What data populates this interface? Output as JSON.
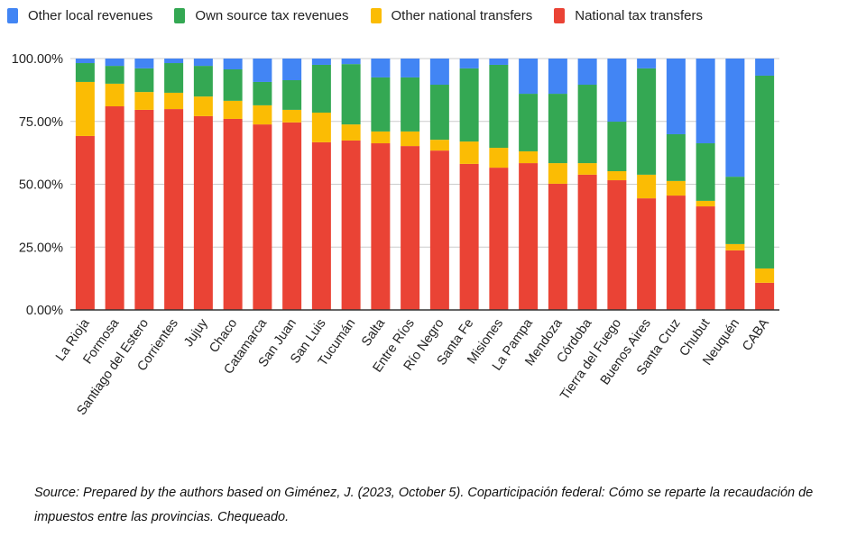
{
  "chart_data": {
    "type": "bar",
    "stacked": true,
    "normalized": true,
    "title": "",
    "xlabel": "",
    "ylabel": "",
    "ylim": [
      0,
      100
    ],
    "yticks": [
      "0.00%",
      "25.00%",
      "50.00%",
      "75.00%",
      "100.00%"
    ],
    "ytick_values": [
      0,
      25,
      50,
      75,
      100
    ],
    "grid": true,
    "legend_position": "top-left",
    "categories": [
      "La Rioja",
      "Formosa",
      "Santiago del Estero",
      "Corrientes",
      "Jujuy",
      "Chaco",
      "Catamarca",
      "San Juan",
      "San Luis",
      "Tucumán",
      "Salta",
      "Entre Ríos",
      "Río Negro",
      "Santa Fe",
      "Misiones",
      "La Pampa",
      "Mendoza",
      "Córdoba",
      "Tierra del Fuego",
      "Buenos Aires",
      "Santa Cruz",
      "Chubut",
      "Neuquén",
      "CABA"
    ],
    "series": [
      {
        "name": "National tax transfers",
        "color": "#ea4335",
        "values": [
          69.2,
          81.0,
          79.6,
          79.9,
          77.1,
          76.0,
          73.8,
          74.6,
          66.7,
          67.4,
          66.3,
          65.2,
          63.4,
          58.1,
          56.6,
          58.4,
          50.2,
          53.8,
          51.6,
          44.4,
          45.5,
          41.2,
          23.7,
          10.8
        ]
      },
      {
        "name": "Other national transfers",
        "color": "#fbbc04",
        "values": [
          21.5,
          9.0,
          7.1,
          6.5,
          7.8,
          7.2,
          7.6,
          5.0,
          11.8,
          6.4,
          4.7,
          5.8,
          4.3,
          8.9,
          7.9,
          4.7,
          8.2,
          4.6,
          3.6,
          9.4,
          5.8,
          2.2,
          2.5,
          5.7
        ]
      },
      {
        "name": "Own source tax revenues",
        "color": "#34a853",
        "values": [
          7.5,
          7.1,
          9.4,
          11.8,
          12.2,
          12.5,
          9.3,
          11.8,
          19.0,
          24.0,
          21.5,
          21.5,
          21.9,
          29.1,
          33.0,
          22.9,
          27.6,
          31.2,
          19.7,
          42.3,
          18.6,
          22.9,
          26.8,
          76.7
        ]
      },
      {
        "name": "Other local revenues",
        "color": "#4285f4",
        "values": [
          1.8,
          2.9,
          3.9,
          1.8,
          2.9,
          4.3,
          9.3,
          8.6,
          2.5,
          2.2,
          7.5,
          7.5,
          10.4,
          3.9,
          2.5,
          14.0,
          14.0,
          10.4,
          25.1,
          3.9,
          30.1,
          33.7,
          47.0,
          6.8
        ]
      }
    ],
    "legend": [
      "Other local revenues",
      "Own source tax revenues",
      "Other national transfers",
      "National tax transfers"
    ]
  },
  "caption": "Source: Prepared by the authors based on Giménez, J. (2023, October 5). Coparticipación federal: Cómo se reparte la recaudación de impuestos entre las provincias. Chequeado.",
  "legend_items": [
    {
      "label": "Other local revenues",
      "color": "#4285f4"
    },
    {
      "label": "Own source tax revenues",
      "color": "#34a853"
    },
    {
      "label": "Other national transfers",
      "color": "#fbbc04"
    },
    {
      "label": "National tax transfers",
      "color": "#ea4335"
    }
  ]
}
